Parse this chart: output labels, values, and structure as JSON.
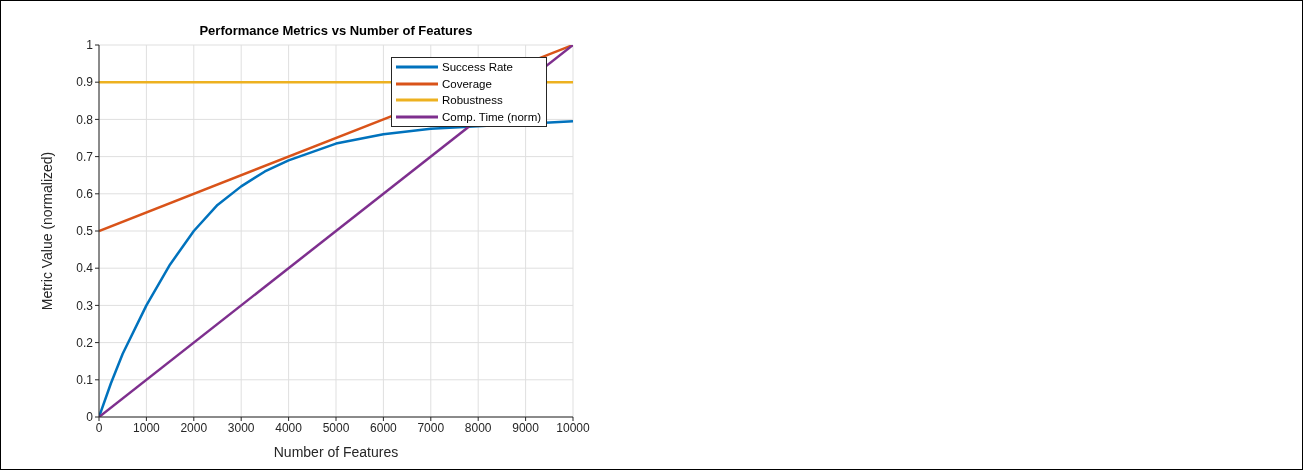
{
  "chart_data": {
    "type": "line",
    "title": "Performance Metrics vs Number of Features",
    "xlabel": "Number of Features",
    "ylabel": "Metric Value (normalized)",
    "xlim": [
      0,
      10000
    ],
    "xticks": [
      0,
      1000,
      2000,
      3000,
      4000,
      5000,
      6000,
      7000,
      8000,
      9000,
      10000
    ],
    "ylim": [
      0,
      1
    ],
    "yticks": [
      0,
      0.1,
      0.2,
      0.3,
      0.4,
      0.5,
      0.6,
      0.7,
      0.8,
      0.9,
      1
    ],
    "grid": true,
    "legend": "top right",
    "line_style": "solid",
    "marker": "none",
    "series": [
      {
        "name": "Success Rate",
        "color": "#0072bd",
        "x": [
          0,
          250,
          500,
          1000,
          1500,
          2000,
          2500,
          3000,
          3500,
          4000,
          5000,
          6000,
          7000,
          8000,
          9000,
          10000
        ],
        "values": [
          0,
          0.09,
          0.17,
          0.3,
          0.41,
          0.5,
          0.57,
          0.62,
          0.66,
          0.69,
          0.735,
          0.76,
          0.775,
          null,
          null,
          0.795
        ]
      },
      {
        "name": "Coverage",
        "color": "#d95319",
        "x": [
          0,
          10000
        ],
        "values": [
          0.5,
          1
        ]
      },
      {
        "name": "Robustness",
        "color": "#edb120",
        "x": [
          0,
          10000
        ],
        "values": [
          0.9,
          0.9
        ]
      },
      {
        "name": "Comp. Time (norm)",
        "color": "#7e2f8e",
        "x": [
          0,
          10000
        ],
        "values": [
          0,
          1
        ]
      }
    ]
  }
}
